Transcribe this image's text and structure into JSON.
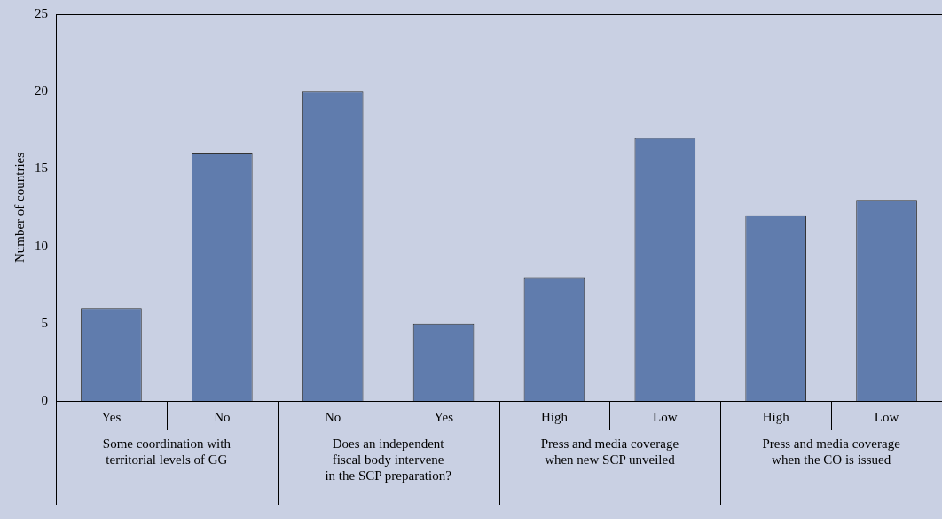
{
  "chart_data": {
    "type": "bar",
    "ylabel": "Number of countries",
    "categories": [
      "Yes",
      "No",
      "No",
      "Yes",
      "High",
      "Low",
      "High",
      "Low"
    ],
    "values": [
      6,
      16,
      20,
      5,
      8,
      17,
      12,
      13
    ],
    "color": "#607cad",
    "ylim": [
      0,
      25
    ],
    "yticks": [
      0,
      5,
      10,
      15,
      20,
      25
    ],
    "grid": false,
    "legend": false,
    "annotations": [
      "Some coordination with\nterritorial levels of GG",
      "Does an independent\nfiscal body intervene\nin the SCP preparation?",
      "Press and media coverage\nwhen new SCP unveiled",
      "Press and media coverage\nwhen the CO is issued"
    ]
  }
}
